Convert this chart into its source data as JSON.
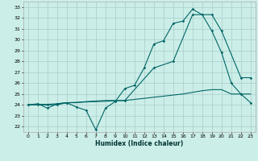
{
  "xlabel": "Humidex (Indice chaleur)",
  "background_color": "#cceee8",
  "grid_color": "#aacccc",
  "line_color": "#006666",
  "xlim": [
    -0.5,
    23.5
  ],
  "ylim": [
    21.5,
    33.5
  ],
  "xticks": [
    0,
    1,
    2,
    3,
    4,
    5,
    6,
    7,
    8,
    9,
    10,
    11,
    12,
    13,
    14,
    15,
    16,
    17,
    18,
    19,
    20,
    21,
    22,
    23
  ],
  "yticks": [
    22,
    23,
    24,
    25,
    26,
    27,
    28,
    29,
    30,
    31,
    32,
    33
  ],
  "line1_x": [
    0,
    1,
    2,
    3,
    4,
    5,
    6,
    7,
    8,
    9,
    10,
    11,
    12,
    13,
    14,
    15,
    16,
    17,
    18,
    19,
    20,
    21,
    22,
    23
  ],
  "line1_y": [
    24.0,
    24.1,
    23.7,
    24.1,
    24.2,
    23.8,
    23.5,
    21.7,
    23.7,
    24.3,
    25.5,
    25.8,
    27.4,
    29.6,
    29.9,
    31.5,
    31.7,
    32.8,
    32.3,
    30.8,
    28.8,
    26.0,
    25.0,
    24.2
  ],
  "line2_x": [
    0,
    1,
    2,
    3,
    4,
    5,
    6,
    7,
    8,
    9,
    10,
    11,
    12,
    13,
    14,
    15,
    16,
    17,
    18,
    19,
    20,
    21,
    22,
    23
  ],
  "line2_y": [
    24.0,
    24.05,
    24.05,
    24.1,
    24.2,
    24.2,
    24.3,
    24.35,
    24.4,
    24.4,
    24.4,
    24.5,
    24.6,
    24.7,
    24.8,
    24.9,
    25.0,
    25.15,
    25.3,
    25.4,
    25.4,
    25.0,
    25.0,
    25.0
  ],
  "line3_x": [
    0,
    1,
    2,
    3,
    4,
    10,
    13,
    15,
    17,
    19,
    20,
    22,
    23
  ],
  "line3_y": [
    24.0,
    24.0,
    24.0,
    24.0,
    24.2,
    24.4,
    27.4,
    28.0,
    32.3,
    32.3,
    30.8,
    26.5,
    26.5
  ]
}
